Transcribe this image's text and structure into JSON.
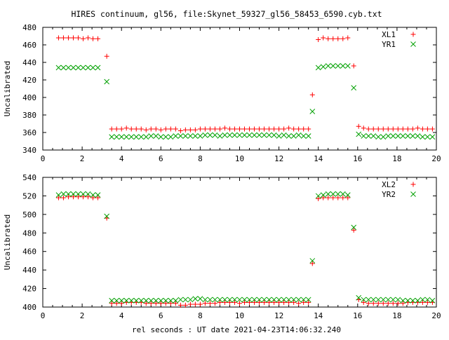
{
  "figure": {
    "title": "HIRES continuum, gl56, file:Skynet_59327_gl56_58453_6590.cyb.txt",
    "xlabel": "rel seconds : UT date 2021-04-23T14:06:32.240"
  },
  "colors": {
    "red": "#ff0000",
    "green": "#00a000",
    "axis": "#000000",
    "grid": "#a0a0a0"
  },
  "chart_data": [
    {
      "type": "scatter",
      "ylabel": "Uncalibrated",
      "xlim": [
        0,
        20
      ],
      "ylim": [
        340,
        480
      ],
      "xticks": [
        0,
        2,
        4,
        6,
        8,
        10,
        12,
        14,
        16,
        18,
        20
      ],
      "yticks": [
        340,
        360,
        380,
        400,
        420,
        440,
        460,
        480
      ],
      "legend": "top-right",
      "series": [
        {
          "name": "XL1",
          "marker": "plus",
          "color": "#ff0000",
          "x": [
            0.8,
            1.05,
            1.3,
            1.55,
            1.8,
            2.05,
            2.3,
            2.55,
            2.8,
            3.25,
            3.5,
            3.75,
            4.0,
            4.25,
            4.5,
            4.75,
            5.0,
            5.25,
            5.5,
            5.75,
            6.0,
            6.25,
            6.5,
            6.75,
            7.0,
            7.25,
            7.5,
            7.75,
            8.0,
            8.25,
            8.5,
            8.75,
            9.0,
            9.25,
            9.5,
            9.75,
            10.0,
            10.25,
            10.5,
            10.75,
            11.0,
            11.25,
            11.5,
            11.75,
            12.0,
            12.25,
            12.5,
            12.75,
            13.0,
            13.25,
            13.5,
            13.7,
            14.0,
            14.25,
            14.5,
            14.75,
            15.0,
            15.25,
            15.5,
            15.8,
            16.05,
            16.3,
            16.55,
            16.8,
            17.05,
            17.3,
            17.55,
            17.8,
            18.05,
            18.3,
            18.55,
            18.8,
            19.05,
            19.3,
            19.55,
            19.8
          ],
          "y": [
            468,
            468,
            468,
            468,
            468,
            467,
            468,
            467,
            467,
            447,
            364,
            364,
            364,
            365,
            364,
            364,
            364,
            363,
            364,
            364,
            363,
            364,
            364,
            364,
            362,
            363,
            363,
            363,
            364,
            364,
            364,
            364,
            364,
            365,
            364,
            364,
            364,
            364,
            364,
            364,
            364,
            364,
            364,
            364,
            364,
            364,
            365,
            364,
            364,
            364,
            364,
            403,
            466,
            468,
            467,
            467,
            467,
            467,
            468,
            436,
            367,
            365,
            364,
            364,
            364,
            364,
            364,
            364,
            364,
            364,
            364,
            364,
            365,
            364,
            364,
            364
          ]
        },
        {
          "name": "YR1",
          "marker": "cross",
          "color": "#00a000",
          "x": [
            0.8,
            1.05,
            1.3,
            1.55,
            1.8,
            2.05,
            2.3,
            2.55,
            2.8,
            3.25,
            3.5,
            3.75,
            4.0,
            4.25,
            4.5,
            4.75,
            5.0,
            5.25,
            5.5,
            5.75,
            6.0,
            6.25,
            6.5,
            6.75,
            7.0,
            7.25,
            7.5,
            7.75,
            8.0,
            8.25,
            8.5,
            8.75,
            9.0,
            9.25,
            9.5,
            9.75,
            10.0,
            10.25,
            10.5,
            10.75,
            11.0,
            11.25,
            11.5,
            11.75,
            12.0,
            12.25,
            12.5,
            12.75,
            13.0,
            13.25,
            13.5,
            13.7,
            14.0,
            14.25,
            14.5,
            14.75,
            15.0,
            15.25,
            15.5,
            15.8,
            16.05,
            16.3,
            16.55,
            16.8,
            17.05,
            17.3,
            17.55,
            17.8,
            18.05,
            18.3,
            18.55,
            18.8,
            19.05,
            19.3,
            19.55,
            19.8
          ],
          "y": [
            434,
            434,
            434,
            434,
            434,
            434,
            434,
            434,
            434,
            418,
            355,
            355,
            355,
            355,
            355,
            355,
            355,
            355,
            356,
            356,
            355,
            355,
            355,
            356,
            356,
            356,
            356,
            356,
            356,
            357,
            357,
            357,
            356,
            357,
            357,
            357,
            357,
            357,
            357,
            357,
            357,
            357,
            357,
            357,
            356,
            357,
            356,
            356,
            357,
            356,
            356,
            384,
            434,
            435,
            436,
            436,
            436,
            436,
            436,
            411,
            358,
            356,
            356,
            356,
            355,
            355,
            356,
            356,
            356,
            356,
            356,
            356,
            356,
            355,
            355,
            355
          ]
        }
      ]
    },
    {
      "type": "scatter",
      "ylabel": "Uncalibrated",
      "xlim": [
        0,
        20
      ],
      "ylim": [
        400,
        540
      ],
      "xticks": [
        0,
        2,
        4,
        6,
        8,
        10,
        12,
        14,
        16,
        18,
        20
      ],
      "yticks": [
        400,
        420,
        440,
        460,
        480,
        500,
        520,
        540
      ],
      "legend": "top-right",
      "series": [
        {
          "name": "XL2",
          "marker": "plus",
          "color": "#ff0000",
          "x": [
            0.8,
            1.05,
            1.3,
            1.55,
            1.8,
            2.05,
            2.3,
            2.55,
            2.8,
            3.25,
            3.5,
            3.75,
            4.0,
            4.25,
            4.5,
            4.75,
            5.0,
            5.25,
            5.5,
            5.75,
            6.0,
            6.25,
            6.5,
            6.75,
            7.0,
            7.25,
            7.5,
            7.75,
            8.0,
            8.25,
            8.5,
            8.75,
            9.0,
            9.25,
            9.5,
            9.75,
            10.0,
            10.25,
            10.5,
            10.75,
            11.0,
            11.25,
            11.5,
            11.75,
            12.0,
            12.25,
            12.5,
            12.75,
            13.0,
            13.25,
            13.5,
            13.7,
            14.0,
            14.25,
            14.5,
            14.75,
            15.0,
            15.25,
            15.5,
            15.8,
            16.05,
            16.3,
            16.55,
            16.8,
            17.05,
            17.3,
            17.55,
            17.8,
            18.05,
            18.3,
            18.55,
            18.8,
            19.05,
            19.3,
            19.55,
            19.8
          ],
          "y": [
            518,
            518,
            519,
            519,
            519,
            519,
            519,
            518,
            518,
            496,
            404,
            404,
            404,
            405,
            405,
            405,
            405,
            404,
            404,
            404,
            404,
            404,
            404,
            404,
            402,
            402,
            403,
            403,
            403,
            404,
            404,
            404,
            405,
            405,
            405,
            405,
            404,
            405,
            405,
            405,
            405,
            405,
            405,
            405,
            405,
            405,
            405,
            405,
            404,
            405,
            405,
            447,
            517,
            518,
            518,
            518,
            518,
            518,
            518,
            483,
            408,
            405,
            404,
            404,
            404,
            404,
            404,
            404,
            404,
            404,
            405,
            405,
            405,
            405,
            405,
            405
          ]
        },
        {
          "name": "YR2",
          "marker": "cross",
          "color": "#00a000",
          "x": [
            0.8,
            1.05,
            1.3,
            1.55,
            1.8,
            2.05,
            2.3,
            2.55,
            2.8,
            3.25,
            3.5,
            3.75,
            4.0,
            4.25,
            4.5,
            4.75,
            5.0,
            5.25,
            5.5,
            5.75,
            6.0,
            6.25,
            6.5,
            6.75,
            7.0,
            7.25,
            7.5,
            7.75,
            8.0,
            8.25,
            8.5,
            8.75,
            9.0,
            9.25,
            9.5,
            9.75,
            10.0,
            10.25,
            10.5,
            10.75,
            11.0,
            11.25,
            11.5,
            11.75,
            12.0,
            12.25,
            12.5,
            12.75,
            13.0,
            13.25,
            13.5,
            13.7,
            14.0,
            14.25,
            14.5,
            14.75,
            15.0,
            15.25,
            15.5,
            15.8,
            16.05,
            16.3,
            16.55,
            16.8,
            17.05,
            17.3,
            17.55,
            17.8,
            18.05,
            18.3,
            18.55,
            18.8,
            19.05,
            19.3,
            19.55,
            19.8
          ],
          "y": [
            521,
            522,
            522,
            522,
            522,
            522,
            522,
            521,
            521,
            498,
            407,
            407,
            407,
            407,
            407,
            407,
            407,
            407,
            407,
            407,
            407,
            407,
            407,
            407,
            408,
            408,
            408,
            409,
            409,
            408,
            408,
            408,
            408,
            408,
            408,
            408,
            408,
            408,
            408,
            408,
            408,
            408,
            408,
            408,
            408,
            408,
            408,
            408,
            408,
            408,
            408,
            450,
            520,
            521,
            522,
            522,
            522,
            522,
            521,
            486,
            410,
            408,
            408,
            408,
            408,
            408,
            408,
            408,
            408,
            407,
            407,
            407,
            407,
            408,
            408,
            407
          ]
        }
      ]
    }
  ]
}
